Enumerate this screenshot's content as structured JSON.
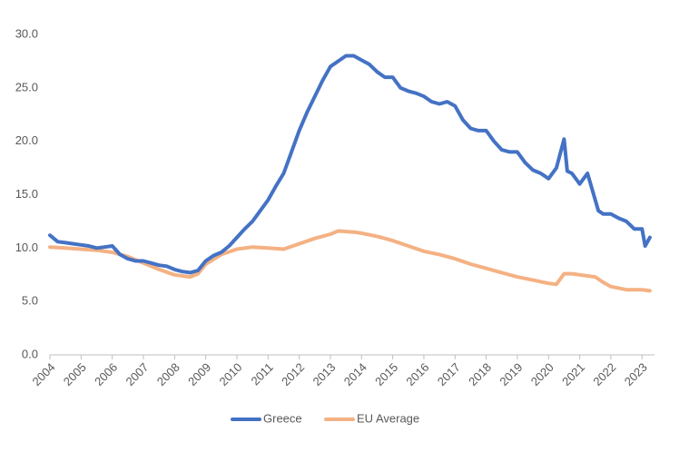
{
  "chart_data": {
    "type": "line",
    "xlim": [
      2004,
      2023.4
    ],
    "xticks": [
      2004,
      2005,
      2006,
      2007,
      2008,
      2009,
      2010,
      2011,
      2012,
      2013,
      2014,
      2015,
      2016,
      2017,
      2018,
      2019,
      2020,
      2021,
      2022,
      2023
    ],
    "ylim": [
      0,
      30
    ],
    "yticks": [
      {
        "value": 0,
        "label": "0.0"
      },
      {
        "value": 5,
        "label": "5.0"
      },
      {
        "value": 10,
        "label": "10.0"
      },
      {
        "value": 15,
        "label": "15.0"
      },
      {
        "value": 20,
        "label": "20.0"
      },
      {
        "value": 25,
        "label": "25.0"
      },
      {
        "value": 30,
        "label": "30.0"
      }
    ],
    "grid": false,
    "legend": "bottom",
    "series": [
      {
        "name": "Greece",
        "color": "#4472c4",
        "x": [
          2004.0,
          2004.25,
          2004.5,
          2004.75,
          2005.0,
          2005.25,
          2005.5,
          2005.75,
          2006.0,
          2006.25,
          2006.5,
          2006.75,
          2007.0,
          2007.25,
          2007.5,
          2007.75,
          2008.0,
          2008.25,
          2008.5,
          2008.75,
          2009.0,
          2009.25,
          2009.5,
          2009.75,
          2010.0,
          2010.25,
          2010.5,
          2010.75,
          2011.0,
          2011.25,
          2011.5,
          2011.75,
          2012.0,
          2012.25,
          2012.5,
          2012.75,
          2013.0,
          2013.25,
          2013.5,
          2013.75,
          2014.0,
          2014.25,
          2014.5,
          2014.75,
          2015.0,
          2015.25,
          2015.5,
          2015.75,
          2016.0,
          2016.25,
          2016.5,
          2016.75,
          2017.0,
          2017.25,
          2017.5,
          2017.75,
          2018.0,
          2018.25,
          2018.5,
          2018.75,
          2019.0,
          2019.25,
          2019.5,
          2019.75,
          2020.0,
          2020.25,
          2020.5,
          2020.6,
          2020.75,
          2021.0,
          2021.25,
          2021.4,
          2021.6,
          2021.75,
          2022.0,
          2022.25,
          2022.5,
          2022.75,
          2023.0,
          2023.1,
          2023.25
        ],
        "values": [
          11.2,
          10.6,
          10.5,
          10.4,
          10.3,
          10.2,
          10.0,
          10.1,
          10.2,
          9.4,
          9.0,
          8.8,
          8.8,
          8.6,
          8.4,
          8.3,
          8.0,
          7.8,
          7.7,
          7.9,
          8.8,
          9.3,
          9.6,
          10.2,
          11.0,
          11.8,
          12.5,
          13.5,
          14.5,
          15.8,
          17.0,
          19.0,
          21.0,
          22.7,
          24.2,
          25.7,
          27.0,
          27.5,
          28.0,
          28.0,
          27.6,
          27.2,
          26.5,
          26.0,
          26.0,
          25.0,
          24.7,
          24.5,
          24.2,
          23.7,
          23.5,
          23.7,
          23.3,
          22.0,
          21.2,
          21.0,
          21.0,
          20.0,
          19.2,
          19.0,
          19.0,
          18.0,
          17.3,
          17.0,
          16.5,
          17.5,
          20.2,
          17.2,
          17.0,
          16.0,
          17.0,
          15.5,
          13.5,
          13.2,
          13.2,
          12.8,
          12.5,
          11.8,
          11.8,
          10.2,
          11.0
        ]
      },
      {
        "name": "EU Average",
        "color": "#f4b183",
        "x": [
          2004.0,
          2004.5,
          2005.0,
          2005.5,
          2006.0,
          2006.5,
          2007.0,
          2007.5,
          2008.0,
          2008.5,
          2008.75,
          2009.0,
          2009.5,
          2010.0,
          2010.5,
          2011.0,
          2011.5,
          2012.0,
          2012.5,
          2013.0,
          2013.25,
          2013.75,
          2014.0,
          2014.5,
          2015.0,
          2015.5,
          2016.0,
          2016.5,
          2017.0,
          2017.5,
          2018.0,
          2018.5,
          2019.0,
          2019.5,
          2020.0,
          2020.25,
          2020.5,
          2020.75,
          2021.0,
          2021.5,
          2021.75,
          2022.0,
          2022.5,
          2023.0,
          2023.25
        ],
        "values": [
          10.1,
          10.0,
          9.9,
          9.8,
          9.6,
          9.2,
          8.6,
          8.0,
          7.5,
          7.3,
          7.6,
          8.5,
          9.4,
          9.9,
          10.1,
          10.0,
          9.9,
          10.4,
          10.9,
          11.3,
          11.6,
          11.5,
          11.4,
          11.1,
          10.7,
          10.2,
          9.7,
          9.4,
          9.0,
          8.5,
          8.1,
          7.7,
          7.3,
          7.0,
          6.7,
          6.6,
          7.6,
          7.6,
          7.5,
          7.3,
          6.8,
          6.4,
          6.1,
          6.1,
          6.0
        ]
      }
    ]
  }
}
